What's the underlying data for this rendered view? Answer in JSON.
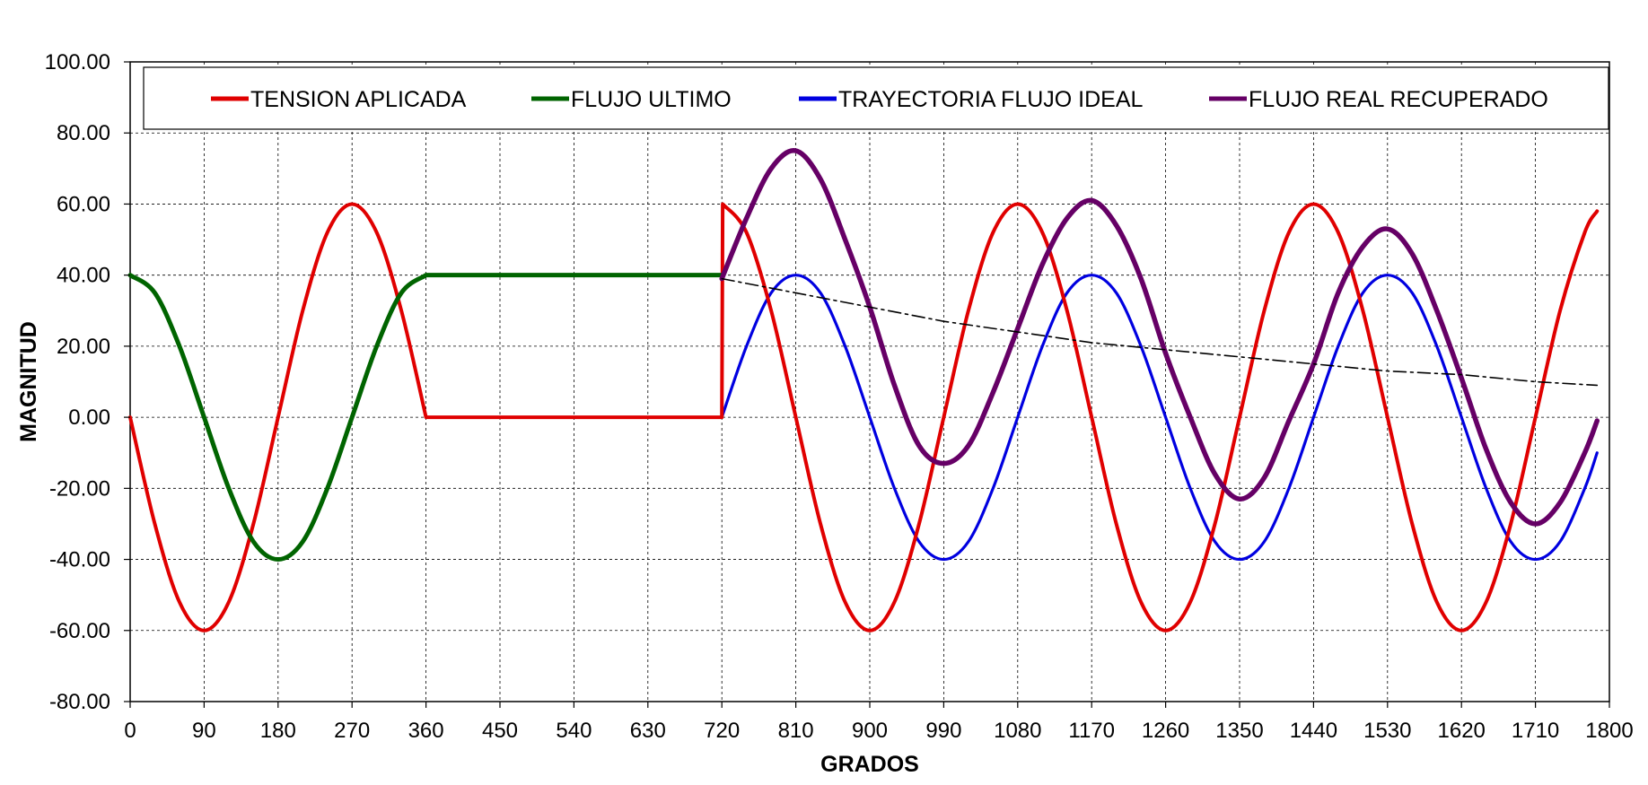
{
  "chart_data": {
    "type": "line",
    "title": "",
    "xlabel": "GRADOS",
    "ylabel": "MAGNITUD",
    "xlim": [
      0,
      1800
    ],
    "ylim": [
      -80,
      100
    ],
    "x_ticks": [
      "0",
      "90",
      "180",
      "270",
      "360",
      "450",
      "540",
      "630",
      "720",
      "810",
      "900",
      "990",
      "1080",
      "1170",
      "1260",
      "1350",
      "1440",
      "1530",
      "1620",
      "1710",
      "1800"
    ],
    "y_ticks": [
      "100.00",
      "80.00",
      "60.00",
      "40.00",
      "20.00",
      "0.00",
      "-20.00",
      "-40.00",
      "-60.00",
      "-80.00"
    ],
    "grid": true,
    "legend_position": "top",
    "series": [
      {
        "name": "TENSION APLICADA",
        "color": "#e00000",
        "x": [
          0,
          30,
          60,
          90,
          120,
          150,
          180,
          210,
          240,
          270,
          300,
          330,
          360,
          361,
          540,
          720,
          721,
          750,
          780,
          810,
          840,
          870,
          900,
          930,
          960,
          990,
          1020,
          1050,
          1080,
          1110,
          1140,
          1170,
          1200,
          1230,
          1260,
          1290,
          1320,
          1350,
          1380,
          1410,
          1440,
          1470,
          1500,
          1530,
          1560,
          1590,
          1620,
          1650,
          1680,
          1710,
          1740,
          1770,
          1785
        ],
        "y": [
          0,
          -30,
          -52,
          -60,
          -52,
          -30,
          0,
          30,
          52,
          60,
          52,
          30,
          0,
          0,
          0,
          0,
          60,
          52,
          30,
          0,
          -30,
          -52,
          -60,
          -52,
          -30,
          0,
          30,
          52,
          60,
          52,
          30,
          0,
          -30,
          -52,
          -60,
          -52,
          -30,
          0,
          30,
          52,
          60,
          52,
          30,
          0,
          -30,
          -52,
          -60,
          -52,
          -30,
          0,
          30,
          52,
          58
        ]
      },
      {
        "name": "FLUJO ULTIMO",
        "color": "#006400",
        "x": [
          0,
          30,
          60,
          90,
          120,
          150,
          180,
          210,
          240,
          270,
          300,
          330,
          360,
          450,
          540,
          630,
          720
        ],
        "y": [
          40,
          35,
          20,
          0,
          -20,
          -35,
          -40,
          -35,
          -20,
          0,
          20,
          35,
          40,
          40,
          40,
          40,
          40
        ]
      },
      {
        "name": "TRAYECTORIA FLUJO IDEAL",
        "color": "#0000e0",
        "x": [
          720,
          750,
          780,
          810,
          840,
          870,
          900,
          930,
          960,
          990,
          1020,
          1050,
          1080,
          1110,
          1140,
          1170,
          1200,
          1230,
          1260,
          1290,
          1320,
          1350,
          1380,
          1410,
          1440,
          1470,
          1500,
          1530,
          1560,
          1590,
          1620,
          1650,
          1680,
          1710,
          1740,
          1770,
          1785
        ],
        "y": [
          0,
          20,
          35,
          40,
          35,
          20,
          0,
          -20,
          -35,
          -40,
          -35,
          -20,
          0,
          20,
          35,
          40,
          35,
          20,
          0,
          -20,
          -35,
          -40,
          -35,
          -20,
          0,
          20,
          35,
          40,
          35,
          20,
          0,
          -20,
          -35,
          -40,
          -35,
          -20,
          -10
        ]
      },
      {
        "name": "FLUJO REAL RECUPERADO",
        "color": "#660066",
        "x": [
          720,
          750,
          780,
          810,
          840,
          870,
          900,
          930,
          960,
          990,
          1020,
          1050,
          1080,
          1110,
          1140,
          1170,
          1200,
          1230,
          1260,
          1290,
          1320,
          1350,
          1380,
          1410,
          1440,
          1470,
          1500,
          1530,
          1560,
          1590,
          1620,
          1650,
          1680,
          1710,
          1740,
          1770,
          1785
        ],
        "y": [
          39,
          56,
          70,
          75,
          67,
          50,
          31,
          9,
          -8,
          -13,
          -8,
          7,
          25,
          43,
          56,
          61,
          54,
          39,
          18,
          0,
          -16,
          -23,
          -17,
          -1,
          15,
          35,
          48,
          53,
          46,
          30,
          11,
          -9,
          -24,
          -30,
          -24,
          -10,
          -1
        ]
      },
      {
        "color": "#000000",
        "dash": "dashdot",
        "x": [
          720,
          810,
          900,
          990,
          1080,
          1170,
          1260,
          1350,
          1440,
          1530,
          1620,
          1710,
          1785
        ],
        "y": [
          39,
          35,
          31,
          27,
          24,
          21,
          19,
          17,
          15,
          13,
          12,
          10,
          9
        ]
      }
    ]
  }
}
